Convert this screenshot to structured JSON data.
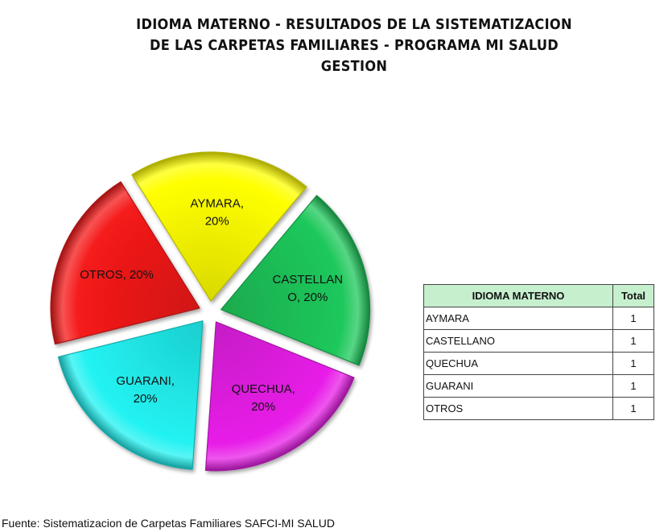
{
  "title_lines": [
    "IDIOMA MATERNO - RESULTADOS DE LA SISTEMATIZACION",
    "DE LAS CARPETAS FAMILIARES - PROGRAMA MI SALUD",
    "GESTION"
  ],
  "chart_data": {
    "type": "pie",
    "title": "IDIOMA MATERNO - RESULTADOS DE LA SISTEMATIZACION DE LAS CARPETAS FAMILIARES - PROGRAMA MI SALUD GESTION",
    "exploded": true,
    "slices": [
      {
        "label": "AYMARA",
        "value": 1,
        "percent": "20%",
        "color": "#ffff00",
        "label_lines": [
          "AYMARA,",
          "20%"
        ]
      },
      {
        "label": "CASTELLANO",
        "value": 1,
        "percent": "20%",
        "color": "#1fc85c",
        "label_lines": [
          "CASTELLAN",
          "O, 20%"
        ]
      },
      {
        "label": "QUECHUA",
        "value": 1,
        "percent": "20%",
        "color": "#e81ee8",
        "label_lines": [
          "QUECHUA,",
          "20%"
        ]
      },
      {
        "label": "GUARANI",
        "value": 1,
        "percent": "20%",
        "color": "#22f2f2",
        "label_lines": [
          "GUARANI,",
          "20%"
        ]
      },
      {
        "label": "OTROS",
        "value": 1,
        "percent": "20%",
        "color": "#f51a1a",
        "label_lines": [
          "OTROS, 20%"
        ]
      }
    ]
  },
  "table": {
    "headers": [
      "IDIOMA MATERNO",
      "Total"
    ],
    "rows": [
      [
        "AYMARA",
        "1"
      ],
      [
        "CASTELLANO",
        "1"
      ],
      [
        "QUECHUA",
        "1"
      ],
      [
        "GUARANI",
        "1"
      ],
      [
        "OTROS",
        "1"
      ]
    ],
    "header_color": "#c6efce"
  },
  "source": "Fuente: Sistematizacion de Carpetas Familiares SAFCI-MI SALUD"
}
